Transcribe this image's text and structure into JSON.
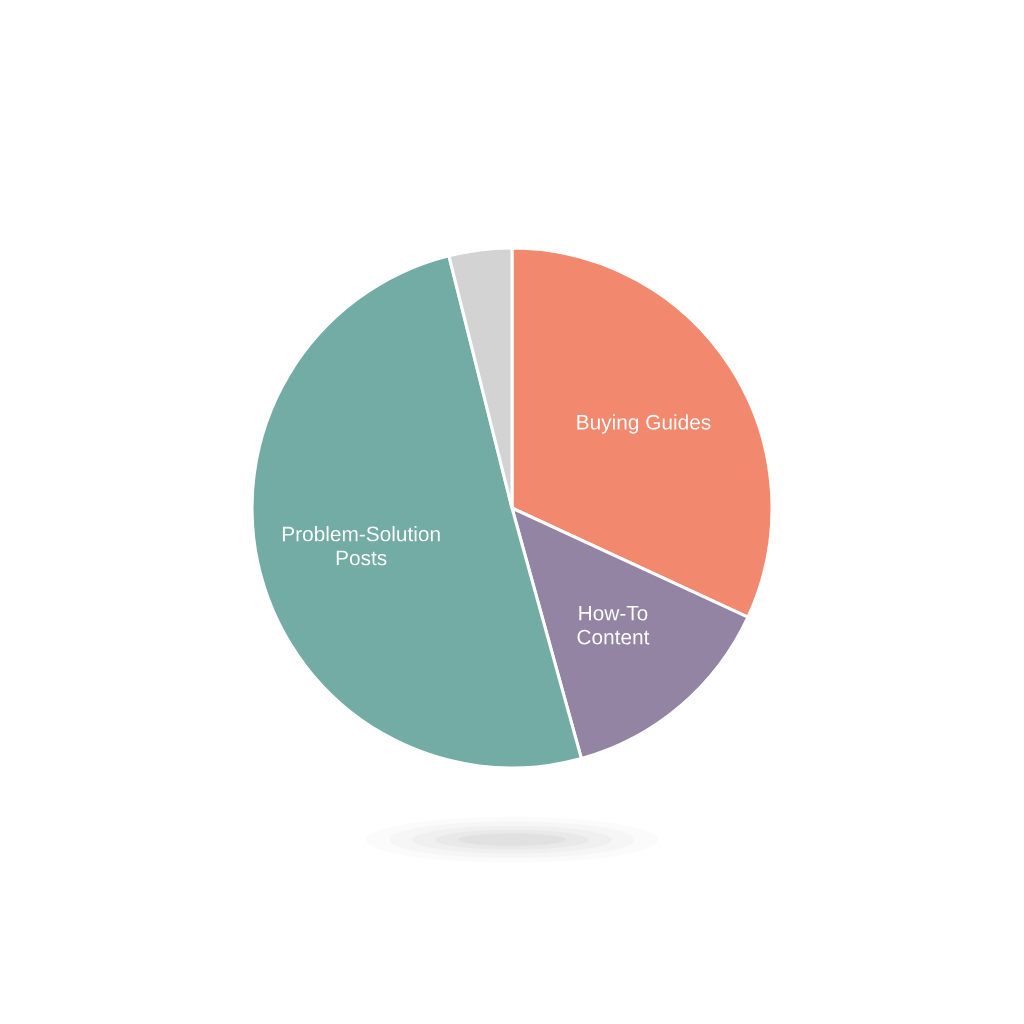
{
  "chart_data": {
    "type": "pie",
    "categories": [
      "Buying Guides",
      "How-To Content",
      "Problem-Solution Posts",
      null
    ],
    "values": [
      31.9,
      13.8,
      50.4,
      3.9
    ],
    "colors": [
      "#f2886e",
      "#9484a4",
      "#72aca5",
      "#d3d3d3"
    ]
  }
}
